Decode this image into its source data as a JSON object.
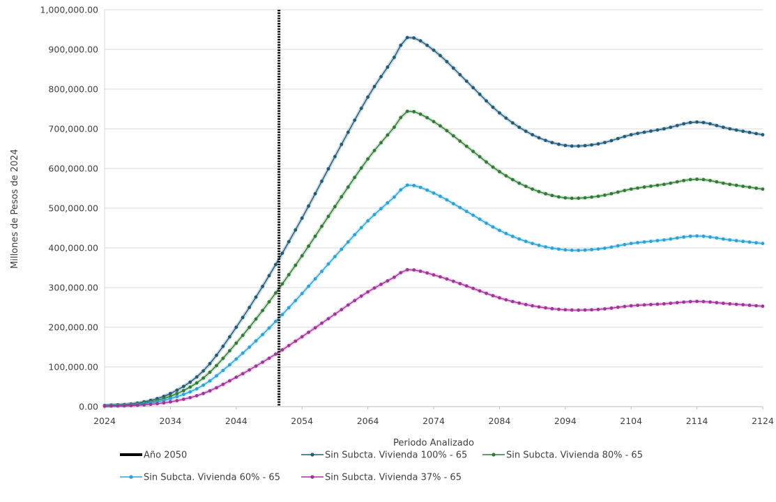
{
  "chart_data": {
    "type": "line",
    "xlabel": "Periodo Analizado",
    "ylabel": "Millones de Pesos de 2024",
    "xlim": [
      2024,
      2124
    ],
    "ylim": [
      0,
      1000000
    ],
    "x_ticks": [
      "2024",
      "2034",
      "2044",
      "2054",
      "2064",
      "2074",
      "2084",
      "2094",
      "2104",
      "2114",
      "2124"
    ],
    "y_ticks": [
      "0.00",
      "100,000.00",
      "200,000.00",
      "300,000.00",
      "400,000.00",
      "500,000.00",
      "600,000.00",
      "700,000.00",
      "800,000.00",
      "900,000.00",
      "1,000,000.00"
    ],
    "grid": "horizontal",
    "legend_position": "bottom",
    "reference_line": {
      "name": "Año 2050",
      "x": 2050.5,
      "color": "#000000",
      "style": "dotted"
    },
    "series": [
      {
        "name": "Sin Subcta. Vivienda 100% - 65",
        "color": "#1f5c7a",
        "points": [
          [
            2024,
            3000
          ],
          [
            2029,
            9000
          ],
          [
            2034,
            33000
          ],
          [
            2039,
            90000
          ],
          [
            2044,
            200000
          ],
          [
            2049,
            330000
          ],
          [
            2054,
            475000
          ],
          [
            2059,
            630000
          ],
          [
            2064,
            780000
          ],
          [
            2068,
            880000
          ],
          [
            2070,
            930000
          ],
          [
            2074,
            898000
          ],
          [
            2079,
            820000
          ],
          [
            2084,
            740000
          ],
          [
            2089,
            685000
          ],
          [
            2094,
            658000
          ],
          [
            2099,
            662000
          ],
          [
            2104,
            685000
          ],
          [
            2109,
            700000
          ],
          [
            2114,
            717000
          ],
          [
            2119,
            700000
          ],
          [
            2124,
            685000
          ]
        ]
      },
      {
        "name": "Sin Subcta. Vivienda 80% - 65",
        "color": "#2e7d32",
        "points": [
          [
            2024,
            2500
          ],
          [
            2029,
            7500
          ],
          [
            2034,
            26000
          ],
          [
            2039,
            72000
          ],
          [
            2044,
            160000
          ],
          [
            2049,
            264000
          ],
          [
            2054,
            380000
          ],
          [
            2059,
            504000
          ],
          [
            2064,
            624000
          ],
          [
            2068,
            704000
          ],
          [
            2070,
            744000
          ],
          [
            2074,
            718000
          ],
          [
            2079,
            656000
          ],
          [
            2084,
            592000
          ],
          [
            2089,
            548000
          ],
          [
            2094,
            526000
          ],
          [
            2099,
            530000
          ],
          [
            2104,
            548000
          ],
          [
            2109,
            560000
          ],
          [
            2114,
            573000
          ],
          [
            2119,
            560000
          ],
          [
            2124,
            548000
          ]
        ]
      },
      {
        "name": "Sin Subcta. Vivienda 60% - 65",
        "color": "#29a3d9",
        "points": [
          [
            2024,
            1800
          ],
          [
            2029,
            5500
          ],
          [
            2034,
            20000
          ],
          [
            2039,
            54000
          ],
          [
            2044,
            120000
          ],
          [
            2049,
            198000
          ],
          [
            2054,
            285000
          ],
          [
            2059,
            378000
          ],
          [
            2064,
            468000
          ],
          [
            2068,
            528000
          ],
          [
            2070,
            558000
          ],
          [
            2074,
            538000
          ],
          [
            2079,
            492000
          ],
          [
            2084,
            444000
          ],
          [
            2089,
            411000
          ],
          [
            2094,
            395000
          ],
          [
            2099,
            397000
          ],
          [
            2104,
            411000
          ],
          [
            2109,
            420000
          ],
          [
            2114,
            430000
          ],
          [
            2119,
            420000
          ],
          [
            2124,
            411000
          ]
        ]
      },
      {
        "name": "Sin Subcta. Vivienda 37% - 65",
        "color": "#a3339b",
        "points": [
          [
            2024,
            1000
          ],
          [
            2029,
            3300
          ],
          [
            2034,
            12000
          ],
          [
            2039,
            33000
          ],
          [
            2044,
            74000
          ],
          [
            2049,
            122000
          ],
          [
            2054,
            176000
          ],
          [
            2059,
            233000
          ],
          [
            2064,
            289000
          ],
          [
            2068,
            326000
          ],
          [
            2070,
            345000
          ],
          [
            2074,
            332000
          ],
          [
            2079,
            304000
          ],
          [
            2084,
            274000
          ],
          [
            2089,
            254000
          ],
          [
            2094,
            244000
          ],
          [
            2099,
            245000
          ],
          [
            2104,
            254000
          ],
          [
            2109,
            259000
          ],
          [
            2114,
            265000
          ],
          [
            2119,
            259000
          ],
          [
            2124,
            253000
          ]
        ]
      }
    ]
  }
}
